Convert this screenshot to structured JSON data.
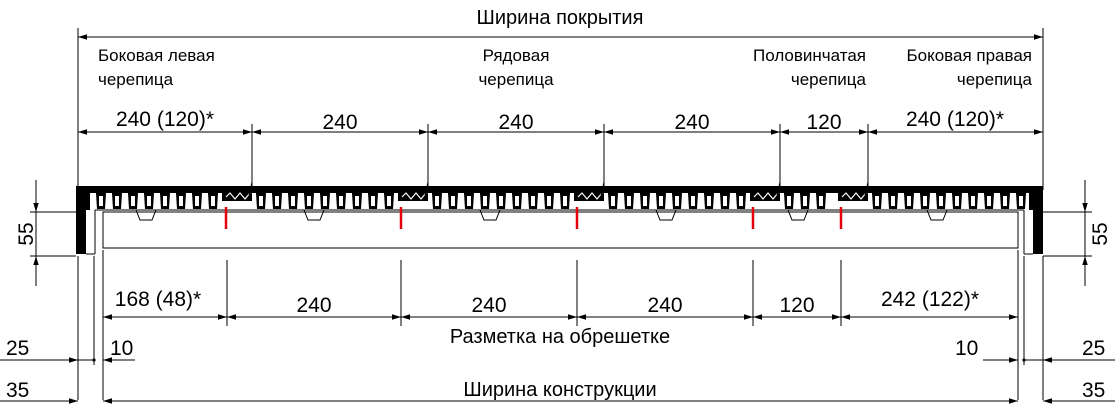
{
  "titles": {
    "coverage_width": "Ширина покрытия",
    "batten_marking": "Разметка на обрешетке",
    "construction_width": "Ширина конструкции"
  },
  "tile_labels": {
    "side_left": [
      "Боковая левая",
      "черепица"
    ],
    "row": [
      "Рядовая",
      "черепица"
    ],
    "half": [
      "Половинчатая",
      "черепица"
    ],
    "side_right": [
      "Боковая правая",
      "черепица"
    ]
  },
  "top_dims": [
    "240 (120)*",
    "240",
    "240",
    "240",
    "120",
    "240 (120)*"
  ],
  "bottom_dims": [
    "168 (48)*",
    "240",
    "240",
    "240",
    "120",
    "242 (122)*"
  ],
  "side_dims": {
    "height_left": "55",
    "height_right": "55",
    "offset_left_outer": "25",
    "offset_left_inner": "10",
    "offset_right_inner": "10",
    "offset_right_outer": "25",
    "edge_left": "35",
    "edge_right": "35"
  },
  "colors": {
    "ink": "#000000",
    "marker": "#e3000f"
  }
}
